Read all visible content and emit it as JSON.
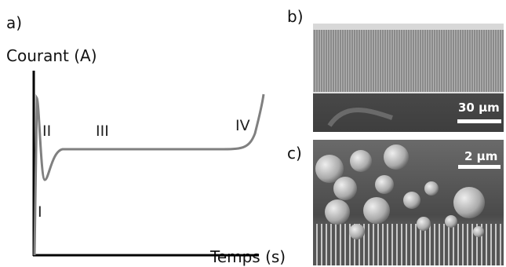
{
  "panels": [
    {
      "label": "a)",
      "y_axis_label": "Courant (A)",
      "x_axis_label": "Temps (s)",
      "regions": [
        "I",
        "II",
        "III",
        "IV"
      ]
    },
    {
      "label": "b)",
      "scale_bar": "30 µm"
    },
    {
      "label": "c)",
      "scale_bar": "2 µm"
    }
  ]
}
